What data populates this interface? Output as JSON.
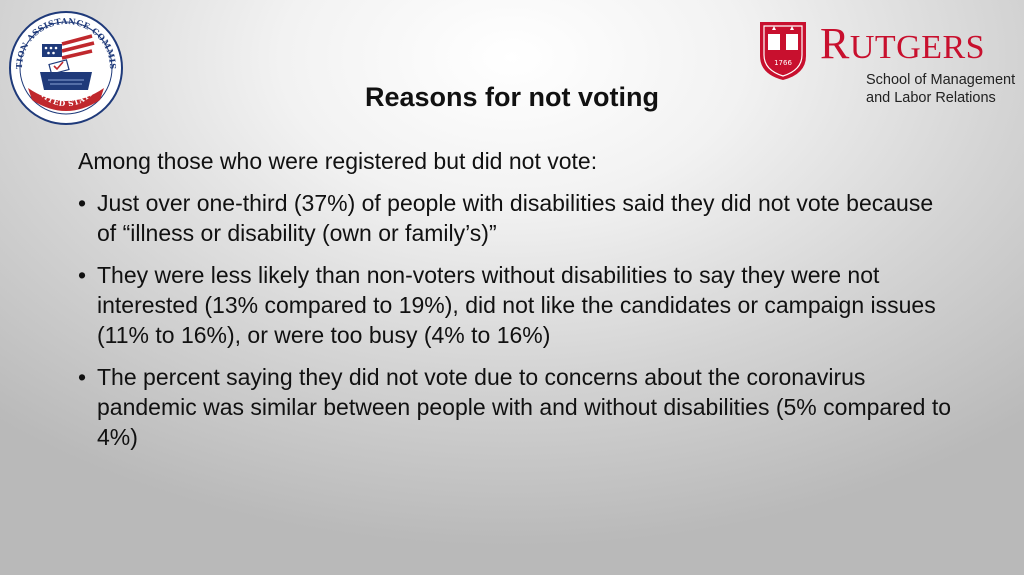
{
  "slide": {
    "title": "Reasons for not voting",
    "intro": "Among those who were registered but did not vote:",
    "bullets": [
      {
        "text": "Just over one-third (37%) of people with disabilities said they did not vote because of “illness or disability (own or family’s)”"
      },
      {
        "text": "They were less likely than non-voters without disabilities to say they were not interested (13% compared to 19%), did not like the candidates or campaign issues (11% to 16%), or were too busy (4% to 16%)"
      },
      {
        "text": "The percent saying they did not vote due to concerns about the coronavirus pandemic was similar between people with and without disabilities (5% compared to 4%)"
      }
    ],
    "bullet_symbol": "•"
  },
  "logos": {
    "eac": {
      "ring_top_text": "ELECTION ASSISTANCE COMMISSION",
      "ring_bottom_text": "UNITED STATES",
      "colors": {
        "navy": "#1f3a7a",
        "red": "#c0282d"
      }
    },
    "rutgers": {
      "wordmark_first": "R",
      "wordmark_rest": "utgers",
      "line1": "School of Management",
      "line2": "and Labor Relations",
      "shield_year": "1766",
      "color": "#c8102e"
    }
  }
}
